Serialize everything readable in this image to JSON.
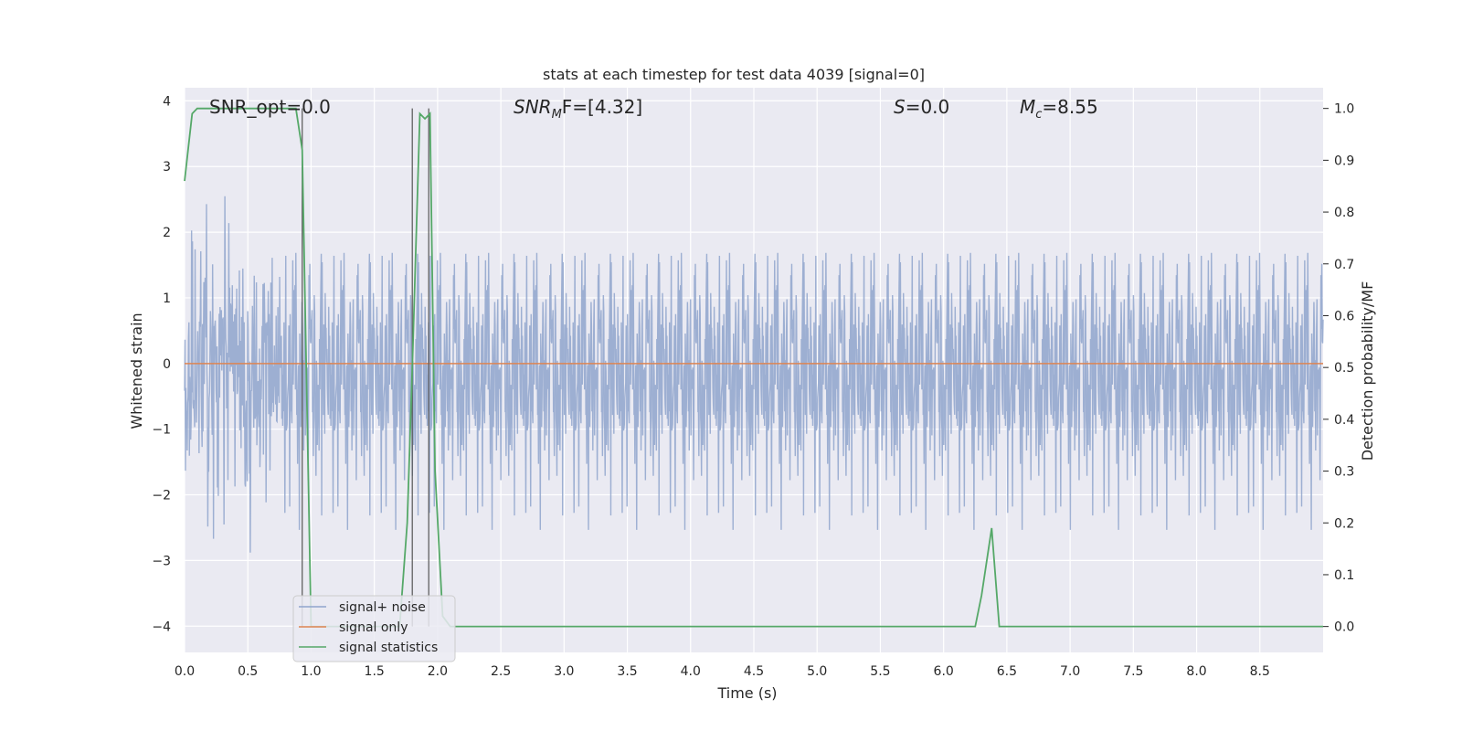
{
  "chart_data": {
    "type": "line",
    "title": "stats at each timestep for test data 4039 [signal=0]",
    "xlabel": "Time (s)",
    "ylabel_left": "Whitened strain",
    "ylabel_right": "Detection probability/MF",
    "xlim": [
      0.0,
      9.0
    ],
    "ylim_left": [
      -4.4,
      4.2
    ],
    "ylim_right": [
      -0.05,
      1.04
    ],
    "x_ticks": [
      "0.0",
      "0.5",
      "1.0",
      "1.5",
      "2.0",
      "2.5",
      "3.0",
      "3.5",
      "4.0",
      "4.5",
      "5.0",
      "5.5",
      "6.0",
      "6.5",
      "7.0",
      "7.5",
      "8.0",
      "8.5"
    ],
    "y_ticks_left": [
      "4",
      "3",
      "2",
      "1",
      "0",
      "−1",
      "−2",
      "−3",
      "−4"
    ],
    "y_ticks_right": [
      "1.0",
      "0.9",
      "0.8",
      "0.7",
      "0.6",
      "0.5",
      "0.4",
      "0.3",
      "0.2",
      "0.1",
      "0.0"
    ],
    "grid": true,
    "legend_position": "lower-left",
    "annotations": {
      "snr_opt": "SNR_opt=0.0",
      "snr_mf_label": "SNR",
      "snr_mf_sub": "M",
      "snr_mf_value": "F=[4.32]",
      "s_label": "S",
      "s_value": "=0.0",
      "mc_label": "M",
      "mc_sub": "c",
      "mc_value": "=8.55"
    },
    "series": [
      {
        "name": "signal+ noise",
        "color": "#8fa4cd",
        "description_kind": "noise",
        "amplitude_rms": 1.0,
        "x_range": [
          0.0,
          9.0
        ]
      },
      {
        "name": "signal only",
        "color": "#dd8452",
        "x": [
          0.0,
          9.0
        ],
        "y": [
          0.0,
          0.0
        ]
      },
      {
        "name": "signal statistics",
        "color": "#55a868",
        "axis": "right",
        "x": [
          0.0,
          0.06,
          0.1,
          0.2,
          0.4,
          0.6,
          0.8,
          0.88,
          0.93,
          1.0,
          1.03,
          1.7,
          1.76,
          1.8,
          1.86,
          1.9,
          1.94,
          1.98,
          2.04,
          2.1,
          6.0,
          6.25,
          6.3,
          6.38,
          6.44,
          6.5,
          9.0
        ],
        "y": [
          0.86,
          0.99,
          1.0,
          1.0,
          1.0,
          1.0,
          1.0,
          1.0,
          0.92,
          0.0,
          0.0,
          0.0,
          0.2,
          0.5,
          0.99,
          0.98,
          0.99,
          0.3,
          0.02,
          0.0,
          0.0,
          0.0,
          0.06,
          0.19,
          0.0,
          0.0,
          0.0
        ]
      }
    ],
    "vertical_lines": [
      0.93,
      1.8,
      1.93
    ]
  }
}
